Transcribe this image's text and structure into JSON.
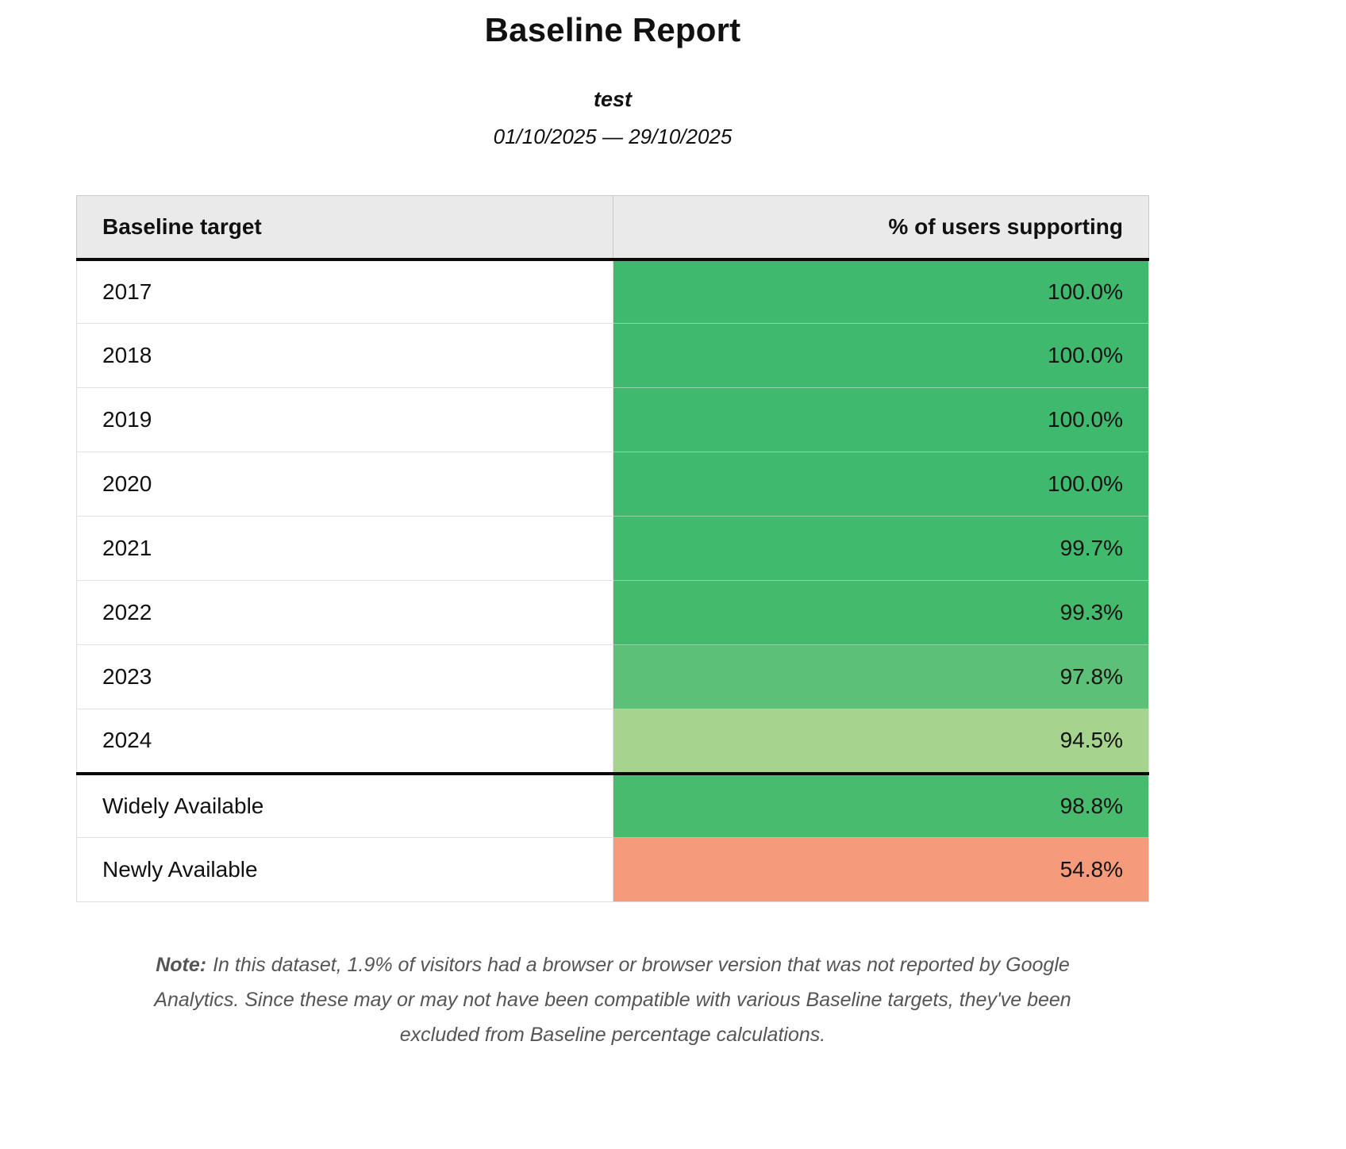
{
  "report": {
    "title": "Baseline Report",
    "subtitle": "test",
    "date_range": "01/10/2025 — 29/10/2025"
  },
  "table": {
    "columns": [
      "Baseline target",
      "% of users supporting"
    ],
    "rows": [
      {
        "target": "2017",
        "value": "100.0%",
        "color": "#3eb96d",
        "divider_before": false
      },
      {
        "target": "2018",
        "value": "100.0%",
        "color": "#3eb96d",
        "divider_before": false
      },
      {
        "target": "2019",
        "value": "100.0%",
        "color": "#3eb96d",
        "divider_before": false
      },
      {
        "target": "2020",
        "value": "100.0%",
        "color": "#3eb96d",
        "divider_before": false
      },
      {
        "target": "2021",
        "value": "99.7%",
        "color": "#40ba6d",
        "divider_before": false
      },
      {
        "target": "2022",
        "value": "99.3%",
        "color": "#44ba6c",
        "divider_before": false
      },
      {
        "target": "2023",
        "value": "97.8%",
        "color": "#5dc078",
        "divider_before": false
      },
      {
        "target": "2024",
        "value": "94.5%",
        "color": "#a6d38d",
        "divider_before": false
      },
      {
        "target": "Widely Available",
        "value": "98.8%",
        "color": "#49bb6e",
        "divider_before": true
      },
      {
        "target": "Newly Available",
        "value": "54.8%",
        "color": "#f59b7c",
        "divider_before": false
      }
    ]
  },
  "note": {
    "label": "Note:",
    "text": "In this dataset, 1.9% of visitors had a browser or browser version that was not reported by Google Analytics. Since these may or may not have been compatible with various Baseline targets, they've been excluded from Baseline percentage calculations."
  }
}
